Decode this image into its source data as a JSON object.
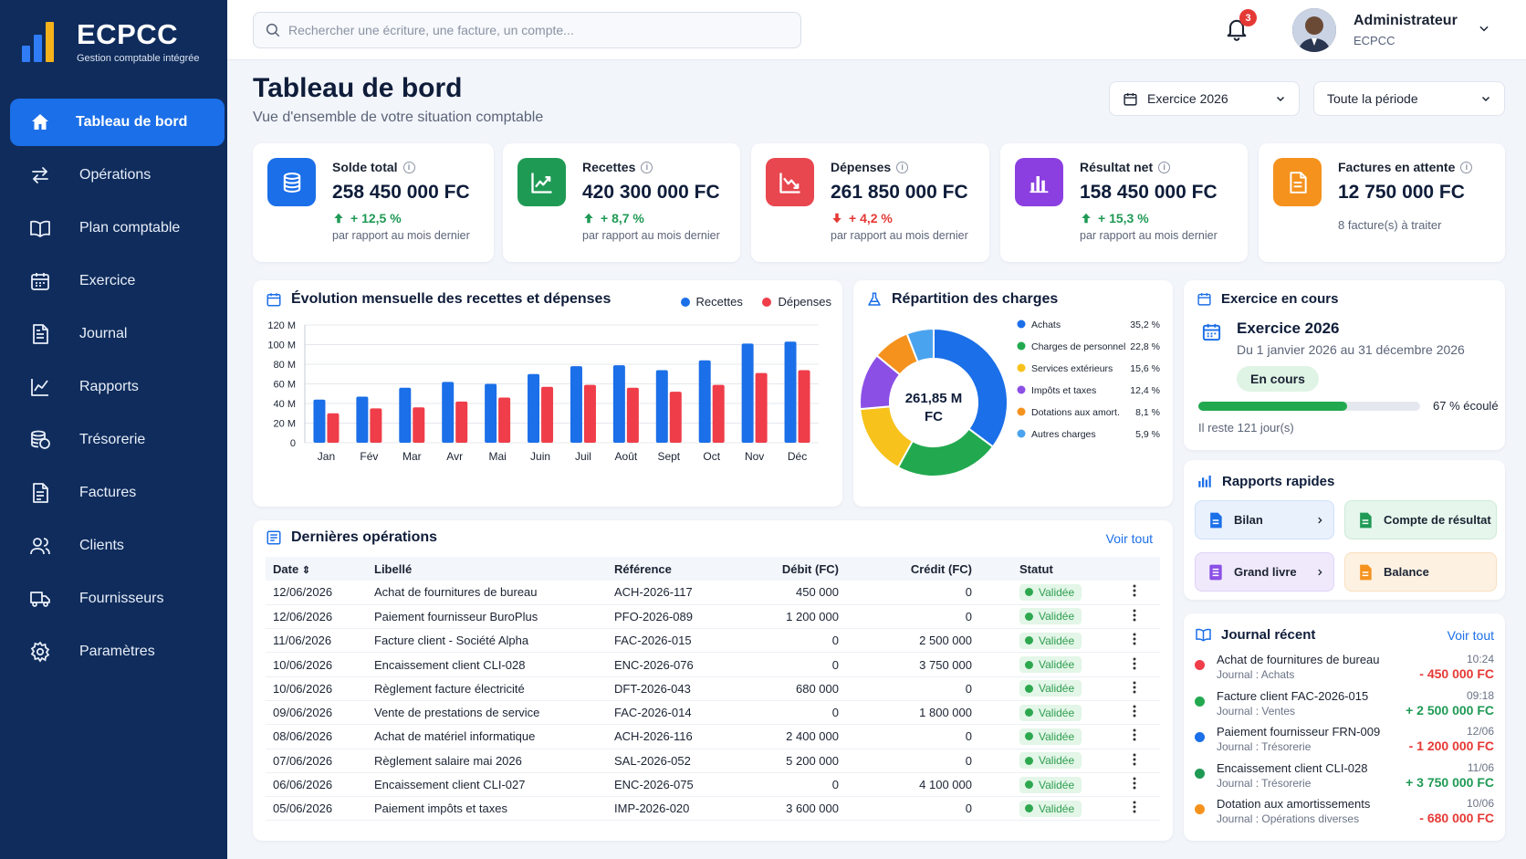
{
  "app": {
    "name": "ECPCC",
    "tagline": "Gestion comptable intégrée"
  },
  "sidebar": {
    "items": [
      {
        "label": "Tableau de bord",
        "icon": "home-icon",
        "active": true
      },
      {
        "label": "Opérations",
        "icon": "transfer-icon"
      },
      {
        "label": "Plan comptable",
        "icon": "book-icon"
      },
      {
        "label": "Exercice",
        "icon": "calendar-icon"
      },
      {
        "label": "Journal",
        "icon": "document-icon"
      },
      {
        "label": "Rapports",
        "icon": "chart-icon"
      },
      {
        "label": "Trésorerie",
        "icon": "coins-icon"
      },
      {
        "label": "Factures",
        "icon": "invoice-icon"
      },
      {
        "label": "Clients",
        "icon": "users-icon"
      },
      {
        "label": "Fournisseurs",
        "icon": "truck-icon"
      },
      {
        "label": "Paramètres",
        "icon": "gear-icon"
      }
    ]
  },
  "header": {
    "search_placeholder": "Rechercher une écriture, une facture, un compte...",
    "notifications": "3",
    "user_name": "Administrateur",
    "user_org": "ECPCC"
  },
  "page": {
    "title": "Tableau de bord",
    "subtitle": "Vue d'ensemble de votre situation comptable",
    "exercice_select": "Exercice 2026",
    "period_select": "Toute la période"
  },
  "kpis": [
    {
      "label": "Solde total",
      "value": "258 450 000 FC",
      "delta": "+ 12,5 %",
      "trend": "up",
      "note": "par rapport au mois dernier",
      "color": "#1b6fe8",
      "icon": "coins-icon"
    },
    {
      "label": "Recettes",
      "value": "420 300 000 FC",
      "delta": "+ 8,7 %",
      "trend": "up",
      "note": "par rapport au mois dernier",
      "color": "#1f9a55",
      "icon": "trend-up-icon"
    },
    {
      "label": "Dépenses",
      "value": "261 850 000 FC",
      "delta": "+ 4,2 %",
      "trend": "down",
      "note": "par rapport au mois dernier",
      "color": "#e8474f",
      "icon": "trend-down-icon"
    },
    {
      "label": "Résultat net",
      "value": "158 450 000 FC",
      "delta": "+ 15,3 %",
      "trend": "up",
      "note": "par rapport au mois dernier",
      "color": "#8b3fe0",
      "icon": "bar-chart-icon"
    },
    {
      "label": "Factures en attente",
      "value": "12 750 000 FC",
      "delta": "",
      "trend": "none",
      "note": "8 facture(s) à traiter",
      "color": "#f5921e",
      "icon": "invoice-icon"
    }
  ],
  "monthly_chart": {
    "title": "Évolution mensuelle des recettes et dépenses",
    "legend": [
      "Recettes",
      "Dépenses"
    ],
    "colors": [
      "#1b6fe8",
      "#ef3d4a"
    ]
  },
  "pie_chart": {
    "title": "Répartition des charges",
    "center_value": "261,85 M",
    "center_unit": "FC"
  },
  "chart_data": [
    {
      "type": "bar",
      "categories": [
        "Jan",
        "Fév",
        "Mar",
        "Avr",
        "Mai",
        "Juin",
        "Juil",
        "Août",
        "Sept",
        "Oct",
        "Nov",
        "Déc"
      ],
      "series": [
        {
          "name": "Recettes",
          "values": [
            44,
            47,
            56,
            62,
            60,
            70,
            78,
            79,
            74,
            84,
            101,
            103
          ]
        },
        {
          "name": "Dépenses",
          "values": [
            30,
            35,
            36,
            42,
            46,
            57,
            59,
            56,
            52,
            59,
            71,
            74
          ]
        }
      ],
      "yticks": [
        "0",
        "20 M",
        "40 M",
        "60 M",
        "80 M",
        "100 M",
        "120 M"
      ],
      "ylim": [
        0,
        120
      ],
      "grid": true,
      "legend_position": "top-right"
    },
    {
      "type": "pie",
      "labels": [
        "Achats",
        "Charges de personnel",
        "Services extérieurs",
        "Impôts et taxes",
        "Dotations aux amort.",
        "Autres charges"
      ],
      "values": [
        35.2,
        22.8,
        15.6,
        12.4,
        8.1,
        5.9
      ],
      "display_values": [
        "35,2 %",
        "22,8 %",
        "15,6 %",
        "12,4 %",
        "8,1 %",
        "5,9 %"
      ],
      "colors": [
        "#1b6fe8",
        "#22a94f",
        "#f7c21b",
        "#8b4fe6",
        "#f5921e",
        "#4aa3ee"
      ],
      "legend_position": "right"
    }
  ],
  "exercice": {
    "heading": "Exercice en cours",
    "name": "Exercice 2026",
    "dates": "Du 1 janvier 2026 au 31 décembre 2026",
    "status": "En cours",
    "progress_label": "67 % écoulé",
    "progress": 0.67,
    "remaining": "Il reste 121 jour(s)"
  },
  "quick_reports": {
    "title": "Rapports rapides",
    "items": [
      {
        "label": "Bilan",
        "color": "#1b6fe8",
        "bg": "#e9f1fd"
      },
      {
        "label": "Compte de résultat",
        "color": "#1f9a55",
        "bg": "#e6f6ec"
      },
      {
        "label": "Grand livre",
        "color": "#8b4fe6",
        "bg": "#f0e9fc"
      },
      {
        "label": "Balance",
        "color": "#f5921e",
        "bg": "#fdf1e2"
      }
    ]
  },
  "operations": {
    "title": "Dernières opérations",
    "link": "Voir tout",
    "columns": [
      "Date",
      "Libellé",
      "Référence",
      "Débit (FC)",
      "Crédit (FC)",
      "Statut"
    ],
    "rows": [
      [
        "12/06/2026",
        "Achat de fournitures de bureau",
        "ACH-2026-117",
        "450 000",
        "0",
        "Validée"
      ],
      [
        "12/06/2026",
        "Paiement fournisseur BuroPlus",
        "PFO-2026-089",
        "1 200 000",
        "0",
        "Validée"
      ],
      [
        "11/06/2026",
        "Facture client - Société Alpha",
        "FAC-2026-015",
        "0",
        "2 500 000",
        "Validée"
      ],
      [
        "10/06/2026",
        "Encaissement client CLI-028",
        "ENC-2026-076",
        "0",
        "3 750 000",
        "Validée"
      ],
      [
        "10/06/2026",
        "Règlement facture électricité",
        "DFT-2026-043",
        "680 000",
        "0",
        "Validée"
      ],
      [
        "09/06/2026",
        "Vente de prestations de service",
        "FAC-2026-014",
        "0",
        "1 800 000",
        "Validée"
      ],
      [
        "08/06/2026",
        "Achat de matériel informatique",
        "ACH-2026-116",
        "2 400 000",
        "0",
        "Validée"
      ],
      [
        "07/06/2026",
        "Règlement salaire mai 2026",
        "SAL-2026-052",
        "5 200 000",
        "0",
        "Validée"
      ],
      [
        "06/06/2026",
        "Encaissement client CLI-027",
        "ENC-2026-075",
        "0",
        "4 100 000",
        "Validée"
      ],
      [
        "05/06/2026",
        "Paiement impôts et taxes",
        "IMP-2026-020",
        "3 600 000",
        "0",
        "Validée"
      ]
    ]
  },
  "journal": {
    "title": "Journal récent",
    "link": "Voir tout",
    "entries": [
      {
        "title": "Achat de fournitures de bureau",
        "journal": "Journal : Achats",
        "date": "10:24",
        "amount": "- 450 000 FC",
        "color": "#ef3d4a",
        "amount_color": "#e53935"
      },
      {
        "title": "Facture client FAC-2026-015",
        "journal": "Journal : Ventes",
        "date": "09:18",
        "amount": "+ 2 500 000 FC",
        "color": "#22a94f",
        "amount_color": "#1f9a55"
      },
      {
        "title": "Paiement fournisseur FRN-009",
        "journal": "Journal : Trésorerie",
        "date": "12/06",
        "amount": "- 1 200 000 FC",
        "color": "#1b6fe8",
        "amount_color": "#e53935"
      },
      {
        "title": "Encaissement client CLI-028",
        "journal": "Journal : Trésorerie",
        "date": "11/06",
        "amount": "+ 3 750 000 FC",
        "color": "#1f9a55",
        "amount_color": "#1f9a55"
      },
      {
        "title": "Dotation aux amortissements",
        "journal": "Journal : Opérations diverses",
        "date": "10/06",
        "amount": "- 680 000 FC",
        "color": "#f5921e",
        "amount_color": "#e53935"
      }
    ]
  }
}
